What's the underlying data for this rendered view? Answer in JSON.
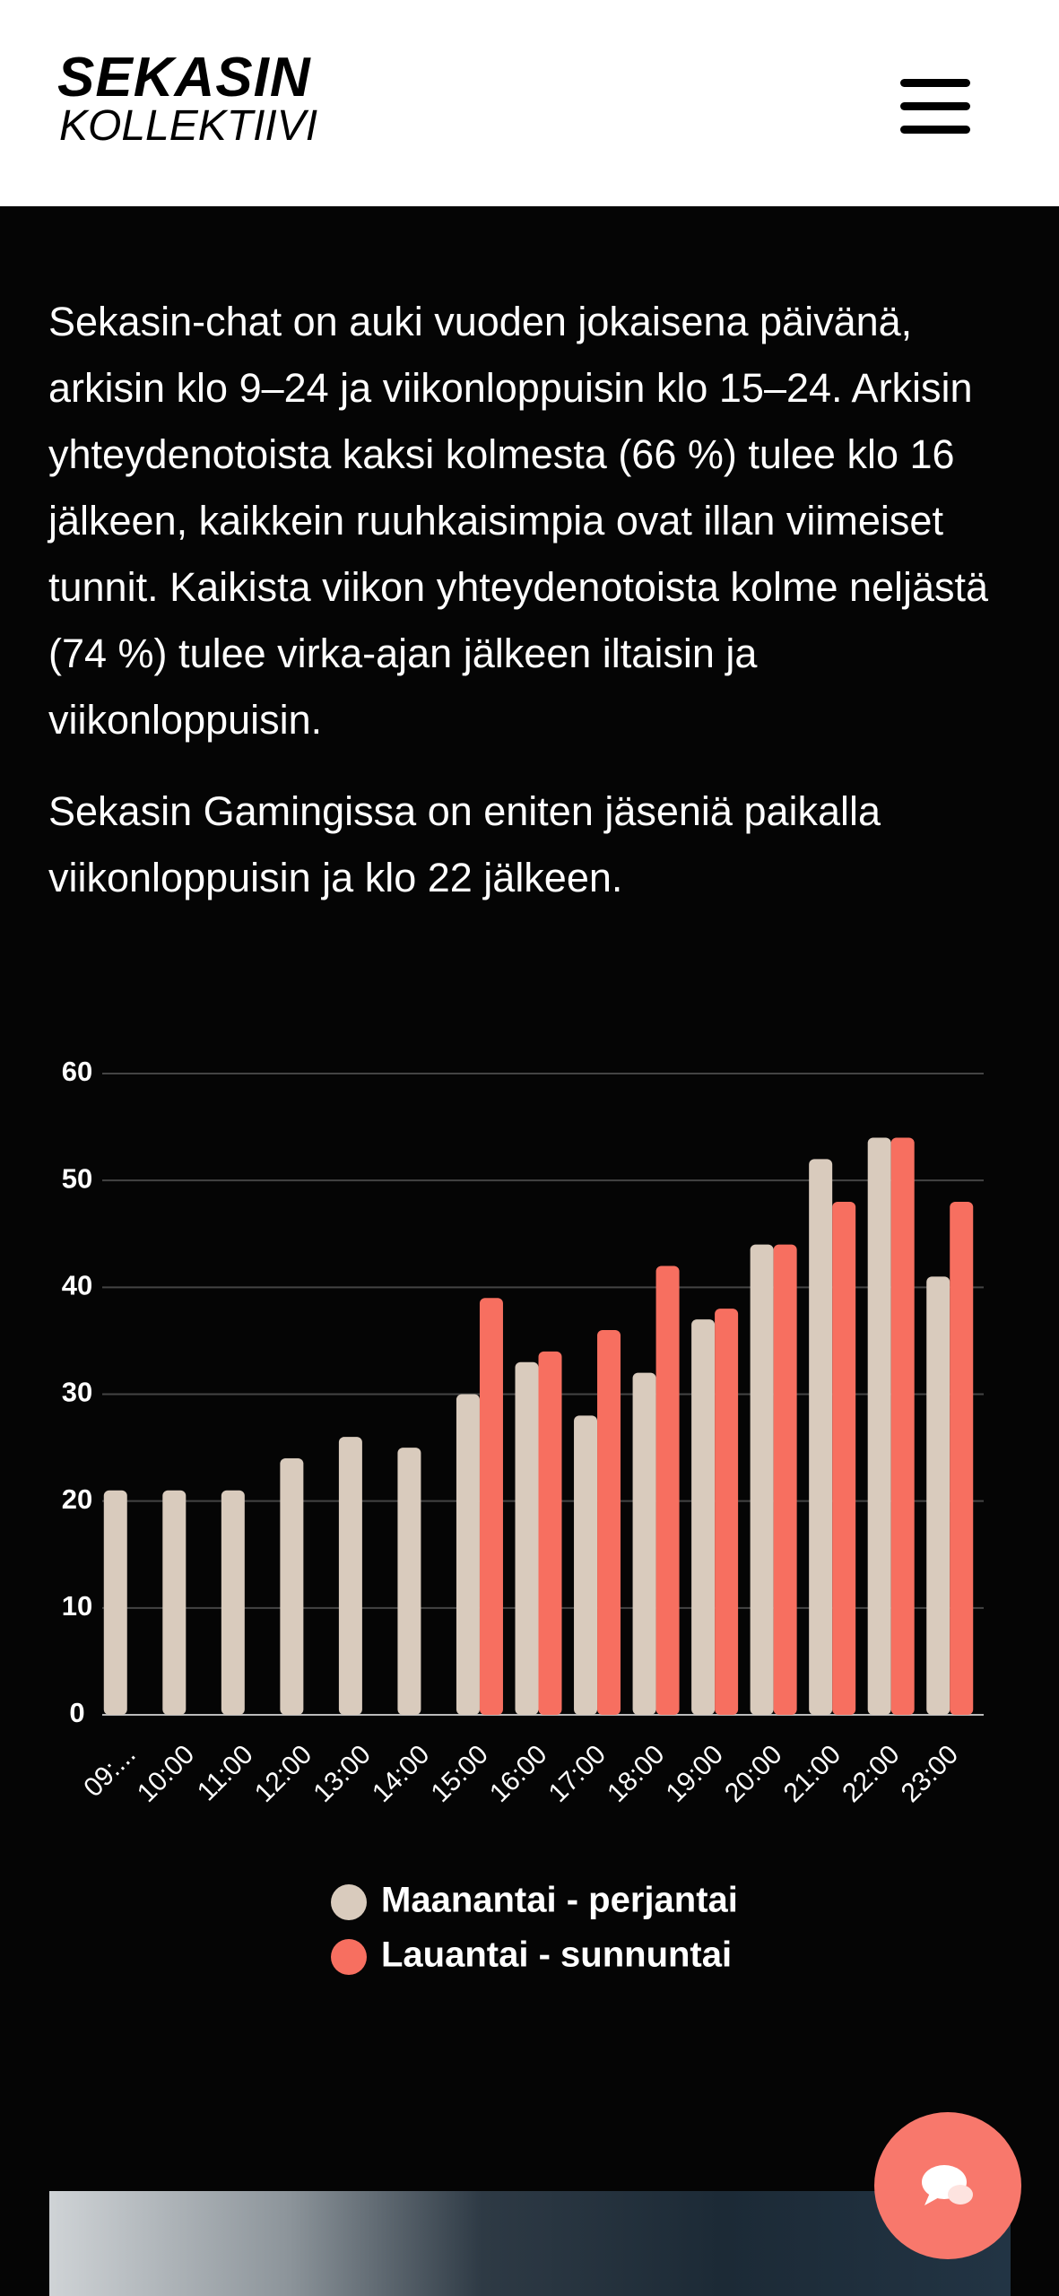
{
  "header": {
    "logo_line1": "SEKASIN",
    "logo_line2": "KOLLEKTIIVI"
  },
  "paragraphs": [
    "Sekasin-chat on auki vuoden jokaisena päivänä, arkisin klo 9–24 ja viikonloppuisin klo 15–24. Arkisin yhteydenotoista kaksi kolmesta (66 %) tulee klo 16 jälkeen, kaikkein ruuhkaisimpia ovat illan viimeiset tunnit. Kaikista viikon yhteydenotoista kolme neljästä (74 %) tulee virka-ajan jälkeen iltaisin ja viikonloppuisin.",
    "Sekasin Gamingissa on eniten jäseniä paikalla viikonloppuisin ja klo 22 jälkeen."
  ],
  "chart_data": {
    "type": "bar",
    "categories": [
      "09:...",
      "10:00",
      "11:00",
      "12:00",
      "13:00",
      "14:00",
      "15:00",
      "16:00",
      "17:00",
      "18:00",
      "19:00",
      "20:00",
      "21:00",
      "22:00",
      "23:00"
    ],
    "series": [
      {
        "name": "Maanantai - perjantai",
        "color": "#d9cbbd",
        "values": [
          21,
          21,
          21,
          24,
          26,
          25,
          30,
          33,
          28,
          32,
          37,
          44,
          52,
          54,
          41
        ]
      },
      {
        "name": "Lauantai - sunnuntai",
        "color": "#f76f60",
        "values": [
          null,
          null,
          null,
          null,
          null,
          null,
          39,
          34,
          36,
          42,
          38,
          44,
          48,
          54,
          48
        ]
      }
    ],
    "ylim": [
      0,
      60
    ],
    "yticks": [
      0,
      10,
      20,
      30,
      40,
      50,
      60
    ],
    "grid": true,
    "legend": "bottom"
  }
}
